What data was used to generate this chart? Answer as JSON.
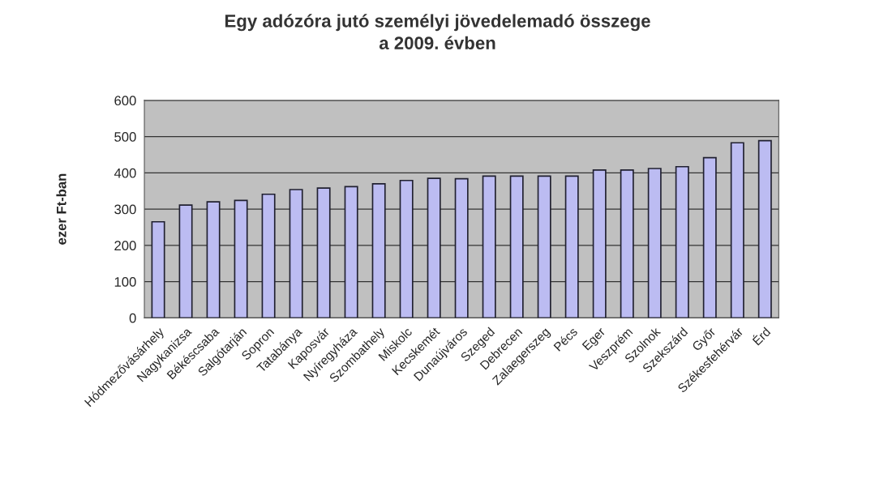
{
  "chart_data": {
    "type": "bar",
    "title": "Egy adózóra jutó személyi jövedelemadó összege\na 2009. évben",
    "ylabel": "ezer Ft-ban",
    "categories": [
      "Hódmezővásárhely",
      "Nagykanizsa",
      "Békéscsaba",
      "Salgótarján",
      "Sopron",
      "Tatabánya",
      "Kaposvár",
      "Nyíregyháza",
      "Szombathely",
      "Miskolc",
      "Kecskemét",
      "Dunaújváros",
      "Szeged",
      "Debrecen",
      "Zalaegerszeg",
      "Pécs",
      "Eger",
      "Veszprém",
      "Szolnok",
      "Szekszárd",
      "Győr",
      "Székesfehérvár",
      "Érd"
    ],
    "values": [
      265,
      311,
      320,
      324,
      341,
      354,
      358,
      362,
      370,
      379,
      385,
      384,
      391,
      391,
      391,
      391,
      408,
      408,
      412,
      417,
      442,
      483,
      489
    ],
    "color": "#bcbcf2",
    "ylim": [
      0,
      600
    ],
    "yticks": [
      0,
      100,
      200,
      300,
      400,
      500,
      600
    ],
    "grid": "y"
  }
}
